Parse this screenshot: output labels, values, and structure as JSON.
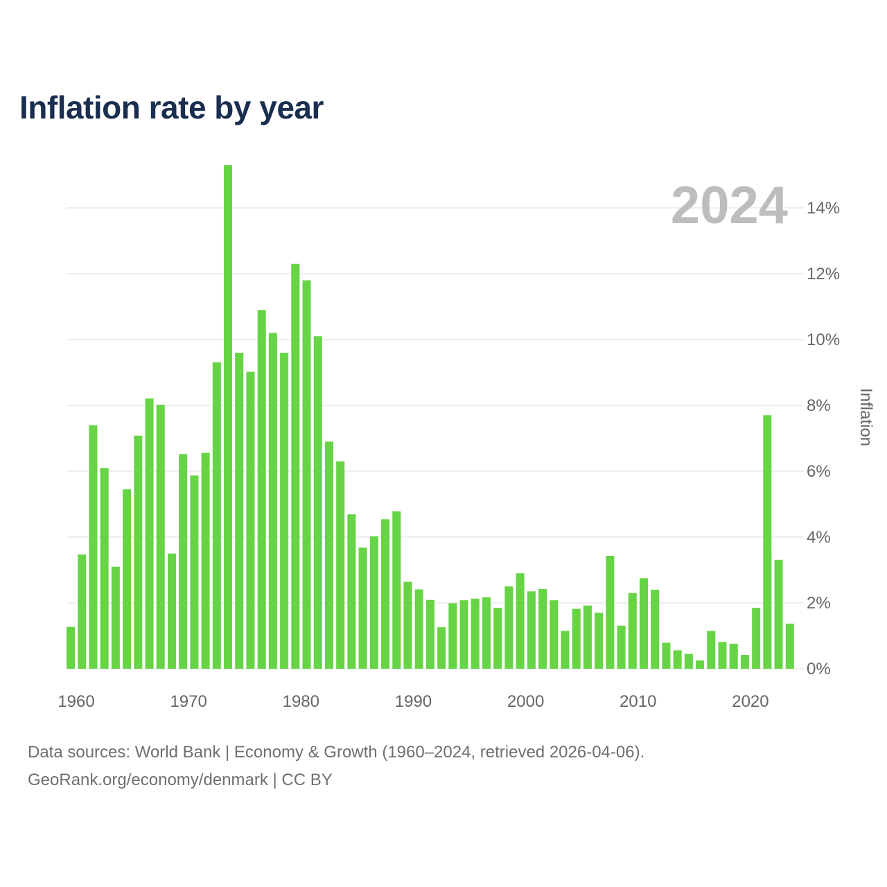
{
  "title": "Inflation rate by year",
  "footer": {
    "line1": "Data sources: World Bank | Economy & Growth (1960–2024, retrieved 2026-04-06).",
    "line2": "GeoRank.org/economy/denmark | CC BY"
  },
  "colors": {
    "bar": "#66d444",
    "title": "#1a2e4f",
    "grid": "#e8e8e8",
    "axis_text": "#666666",
    "watermark": "#bdbdbd"
  },
  "chart_data": {
    "type": "bar",
    "title": "Inflation rate by year",
    "watermark": "2024",
    "xlabel": "",
    "ylabel": "Inflation",
    "ylim": [
      0,
      15.3
    ],
    "y_ticks": [
      0,
      2,
      4,
      6,
      8,
      10,
      12,
      14
    ],
    "y_tick_labels": [
      "0%",
      "2%",
      "4%",
      "6%",
      "8%",
      "10%",
      "12%",
      "14%"
    ],
    "x_ticks": [
      1960,
      1970,
      1980,
      1990,
      2000,
      2010,
      2020
    ],
    "x_tick_labels": [
      "1960",
      "1970",
      "1980",
      "1990",
      "2000",
      "2010",
      "2020"
    ],
    "categories": [
      1960,
      1961,
      1962,
      1963,
      1964,
      1965,
      1966,
      1967,
      1968,
      1969,
      1970,
      1971,
      1972,
      1973,
      1974,
      1975,
      1976,
      1977,
      1978,
      1979,
      1980,
      1981,
      1982,
      1983,
      1984,
      1985,
      1986,
      1987,
      1988,
      1989,
      1990,
      1991,
      1992,
      1993,
      1994,
      1995,
      1996,
      1997,
      1998,
      1999,
      2000,
      2001,
      2002,
      2003,
      2004,
      2005,
      2006,
      2007,
      2008,
      2009,
      2010,
      2011,
      2012,
      2013,
      2014,
      2015,
      2016,
      2017,
      2018,
      2019,
      2020,
      2021,
      2022,
      2023,
      2024
    ],
    "values": [
      1.27,
      3.47,
      7.4,
      6.1,
      3.1,
      5.45,
      7.08,
      8.21,
      8.02,
      3.5,
      6.52,
      5.87,
      6.56,
      9.31,
      15.3,
      9.6,
      9.02,
      10.9,
      10.2,
      9.6,
      12.3,
      11.8,
      10.1,
      6.9,
      6.3,
      4.69,
      3.68,
      4.02,
      4.54,
      4.78,
      2.64,
      2.41,
      2.09,
      1.26,
      1.99,
      2.08,
      2.13,
      2.17,
      1.85,
      2.5,
      2.9,
      2.35,
      2.42,
      2.08,
      1.15,
      1.82,
      1.92,
      1.7,
      3.43,
      1.31,
      2.3,
      2.75,
      2.4,
      0.79,
      0.56,
      0.45,
      0.25,
      1.15,
      0.81,
      0.76,
      0.42,
      1.85,
      7.7,
      3.31,
      1.37
    ]
  }
}
